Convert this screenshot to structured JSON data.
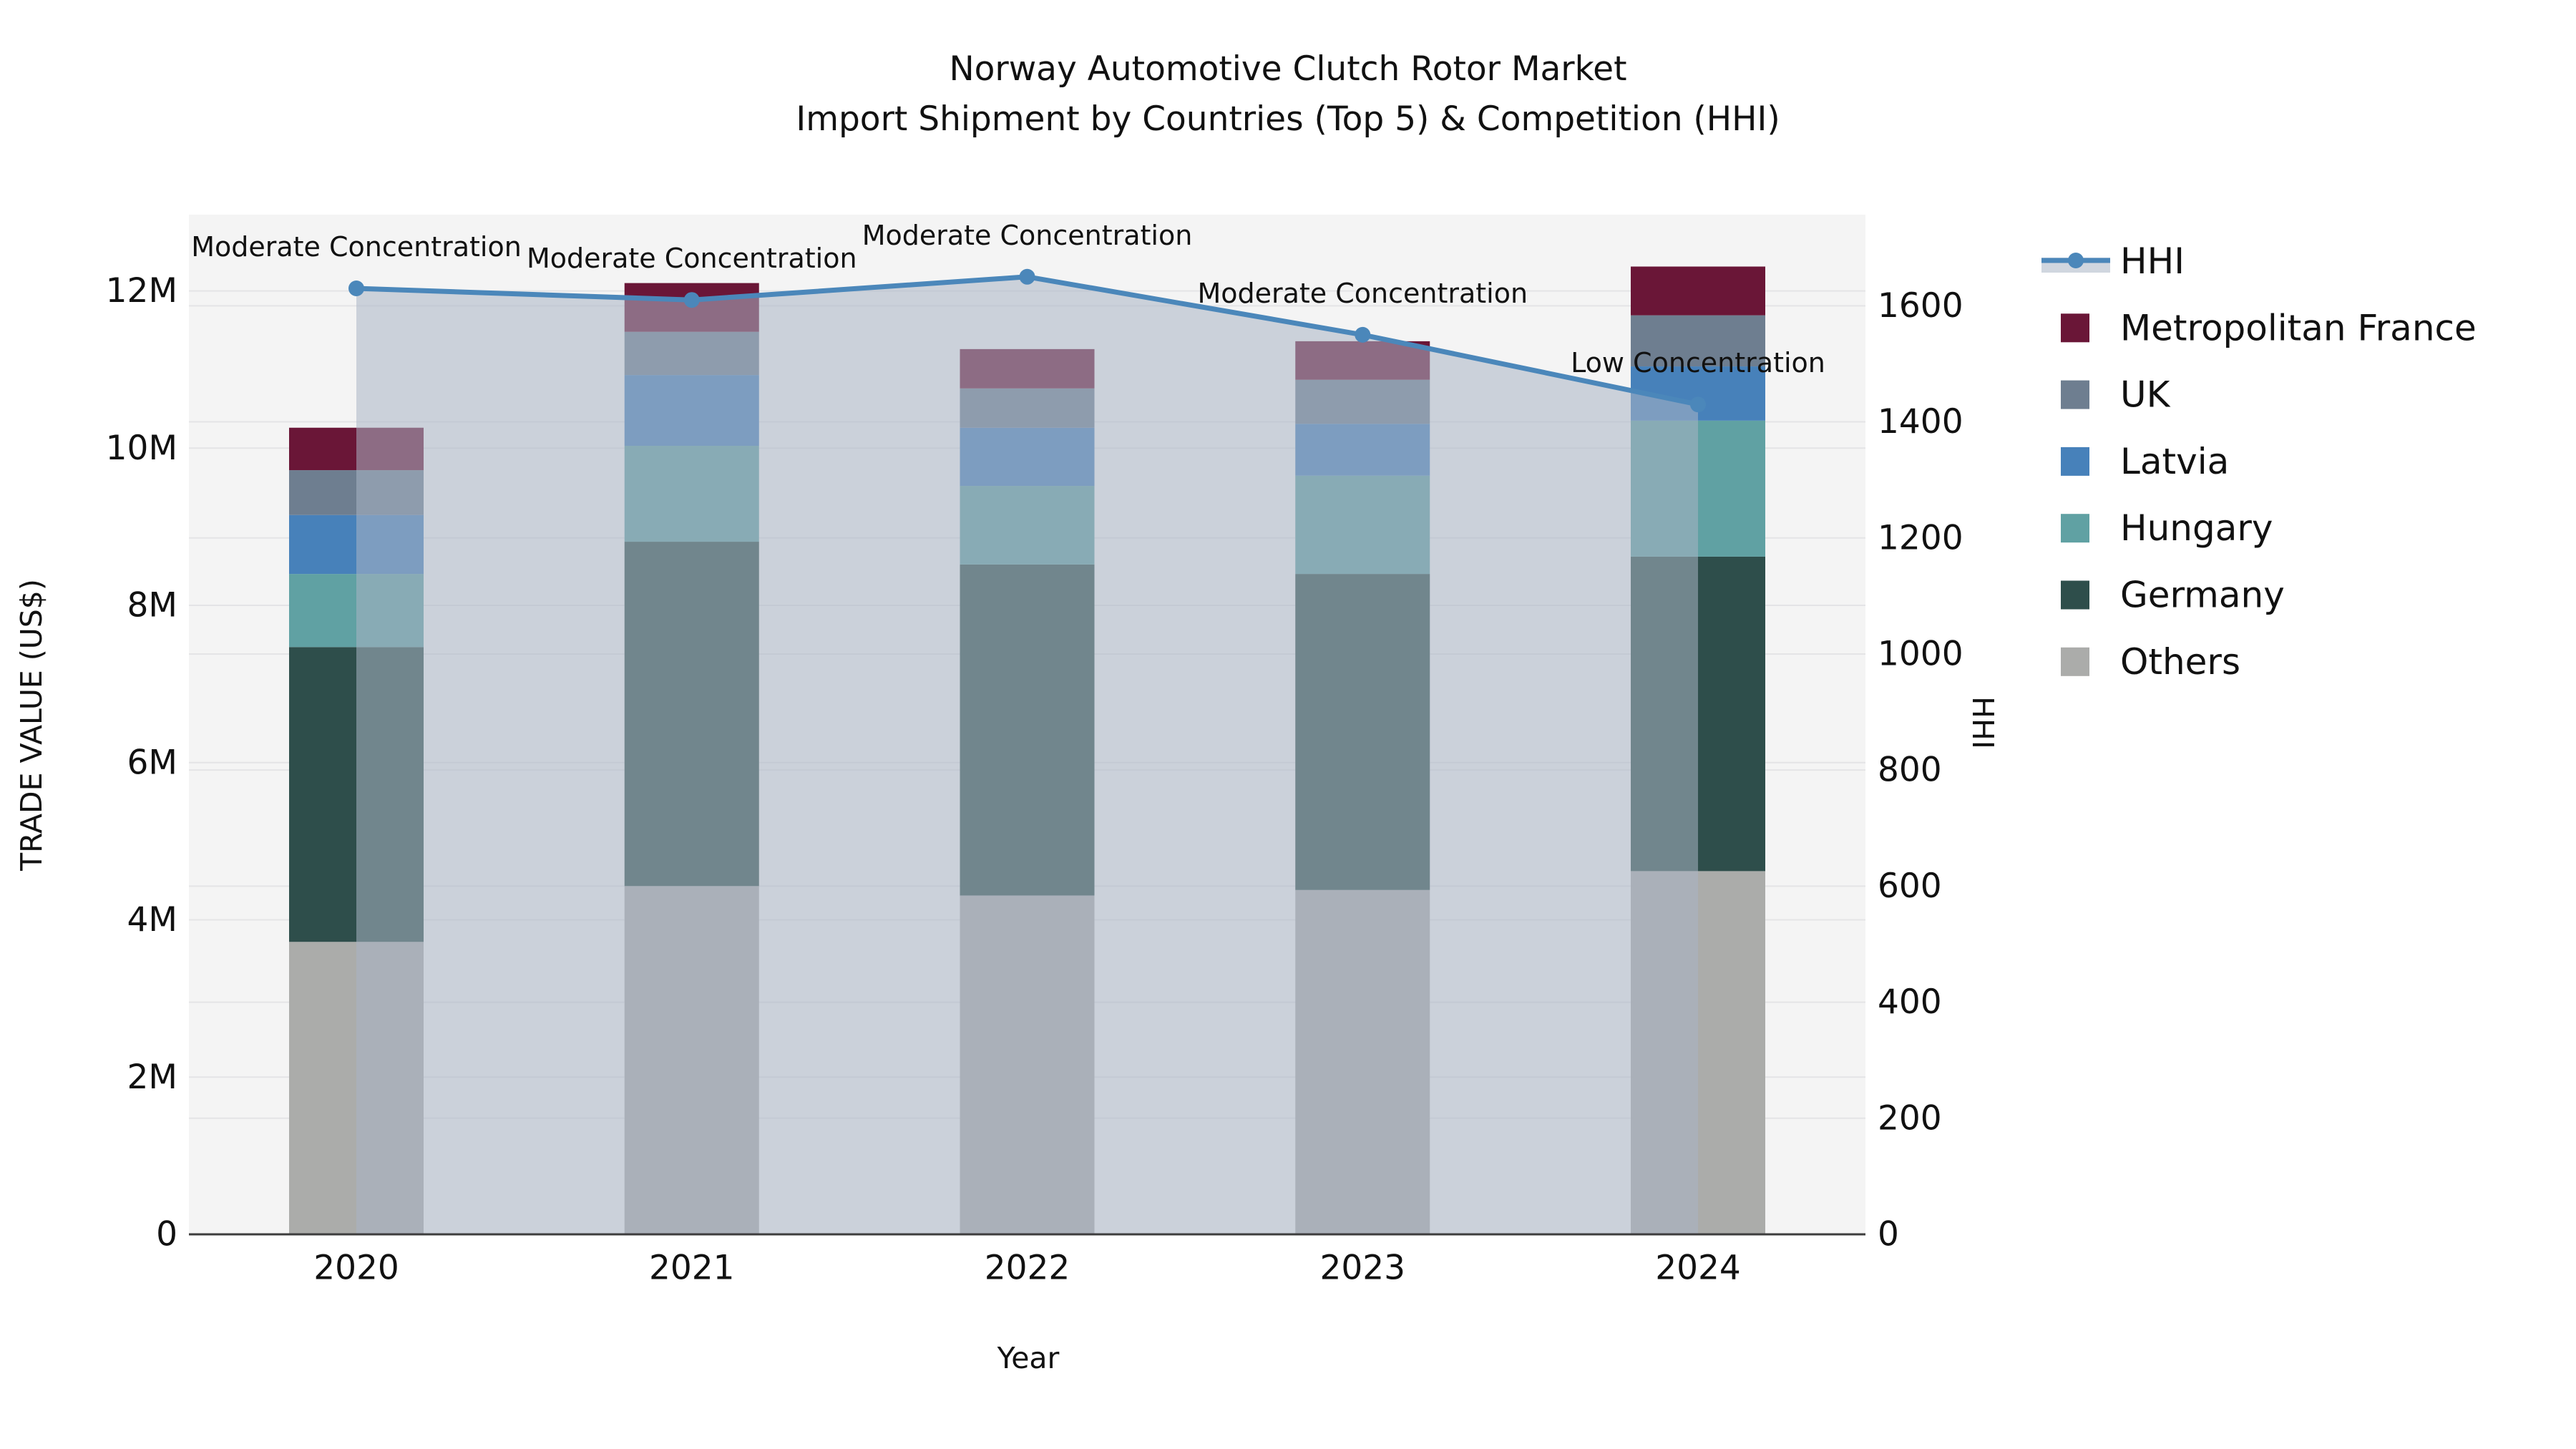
{
  "title": {
    "line1": "Norway Automotive Clutch Rotor Market",
    "line2": "Import Shipment by Countries (Top 5) & Competition (HHI)"
  },
  "axes": {
    "left": {
      "label": "TRADE VALUE (US$)",
      "tick_labels": [
        "0",
        "2M",
        "4M",
        "6M",
        "8M",
        "10M",
        "12M"
      ],
      "tick_values": [
        0,
        2,
        4,
        6,
        8,
        10,
        12
      ]
    },
    "right": {
      "label": "HHI",
      "tick_labels": [
        "0",
        "200",
        "400",
        "600",
        "800",
        "1000",
        "1200",
        "1400",
        "1600"
      ],
      "tick_values": [
        0,
        200,
        400,
        600,
        800,
        1000,
        1200,
        1400,
        1600
      ]
    },
    "x": {
      "label": "Year",
      "tick_labels": [
        "2020",
        "2021",
        "2022",
        "2023",
        "2024"
      ]
    }
  },
  "chart_data": {
    "type": "bar",
    "subtype": "stacked-bars-with-line-overlay",
    "categories": [
      "2020",
      "2021",
      "2022",
      "2023",
      "2024"
    ],
    "values_unit": "USD millions (left axis), HHI index (right axis)",
    "series": [
      {
        "name": "Others",
        "axis": "left",
        "type": "bar",
        "color": "#abacaa",
        "values": [
          3.72,
          4.43,
          4.31,
          4.38,
          4.62
        ]
      },
      {
        "name": "Germany",
        "axis": "left",
        "type": "bar",
        "color": "#2e4e4b",
        "values": [
          3.75,
          4.38,
          4.21,
          4.02,
          4.0
        ]
      },
      {
        "name": "Hungary",
        "axis": "left",
        "type": "bar",
        "color": "#60a1a3",
        "values": [
          0.93,
          1.22,
          1.0,
          1.25,
          1.73
        ]
      },
      {
        "name": "Latvia",
        "axis": "left",
        "type": "bar",
        "color": "#4781ba",
        "values": [
          0.75,
          0.9,
          0.74,
          0.66,
          0.69
        ]
      },
      {
        "name": "UK",
        "axis": "left",
        "type": "bar",
        "color": "#6e7e90",
        "values": [
          0.57,
          0.55,
          0.5,
          0.56,
          0.65
        ]
      },
      {
        "name": "Metropolitan France",
        "axis": "left",
        "type": "bar",
        "color": "#6a1637",
        "values": [
          0.54,
          0.62,
          0.5,
          0.49,
          0.62
        ]
      },
      {
        "name": "HHI",
        "axis": "right",
        "type": "line",
        "color": "#4b87ba",
        "values": [
          1630,
          1610,
          1650,
          1550,
          1430
        ]
      }
    ],
    "bar_totals": [
      10.26,
      12.1,
      11.26,
      11.36,
      12.31
    ],
    "annotations": [
      "Moderate Concentration",
      "Moderate Concentration",
      "Moderate Concentration",
      "Moderate Concentration",
      "Low Concentration"
    ],
    "ylim_left": [
      0,
      12.97
    ],
    "ylim_right": [
      0,
      1757
    ],
    "grid": "on",
    "legend_position": "right-outside",
    "area_fill_color": "rgba(170,180,197,0.55)",
    "plot_background": "#f4f4f4",
    "gridline_color": "#e4e4e6",
    "spine_color": "#3d3d3d"
  },
  "legend": {
    "items": [
      {
        "label": "HHI",
        "kind": "line",
        "color": "#4b87ba"
      },
      {
        "label": "Metropolitan France",
        "kind": "box",
        "color": "#6a1637"
      },
      {
        "label": "UK",
        "kind": "box",
        "color": "#6e7e90"
      },
      {
        "label": "Latvia",
        "kind": "box",
        "color": "#4781ba"
      },
      {
        "label": "Hungary",
        "kind": "box",
        "color": "#60a1a3"
      },
      {
        "label": "Germany",
        "kind": "box",
        "color": "#2e4e4b"
      },
      {
        "label": "Others",
        "kind": "box",
        "color": "#abacaa"
      }
    ]
  }
}
